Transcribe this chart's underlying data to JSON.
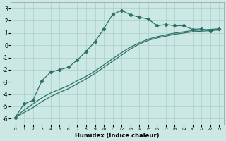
{
  "xlabel": "Humidex (Indice chaleur)",
  "bg_color": "#cce8e4",
  "grid_color": "#aacfca",
  "line_color": "#2d7068",
  "xlim": [
    -0.5,
    23.5
  ],
  "ylim": [
    -6.5,
    3.5
  ],
  "xticks": [
    0,
    1,
    2,
    3,
    4,
    5,
    6,
    7,
    8,
    9,
    10,
    11,
    12,
    13,
    14,
    15,
    16,
    17,
    18,
    19,
    20,
    21,
    22,
    23
  ],
  "yticks": [
    -6,
    -5,
    -4,
    -3,
    -2,
    -1,
    0,
    1,
    2,
    3
  ],
  "line1_x": [
    0,
    1,
    2,
    3,
    4,
    5,
    6,
    7,
    8,
    9,
    10,
    11,
    12,
    13,
    14,
    15,
    16,
    17,
    18,
    19,
    20,
    21,
    22,
    23
  ],
  "line1_y": [
    -5.9,
    -4.8,
    -4.5,
    -2.9,
    -2.2,
    -2.0,
    -1.8,
    -1.2,
    -0.5,
    0.3,
    1.35,
    2.55,
    2.85,
    2.5,
    2.3,
    2.15,
    1.6,
    1.7,
    1.6,
    1.6,
    1.3,
    1.35,
    1.15,
    1.35
  ],
  "line2_x": [
    0,
    1,
    2,
    3,
    4,
    5,
    6,
    7,
    8,
    9,
    10,
    11,
    12,
    13,
    14,
    15,
    16,
    17,
    18,
    19,
    20,
    21,
    22,
    23
  ],
  "line2_y": [
    -5.9,
    -5.3,
    -4.8,
    -4.3,
    -3.9,
    -3.6,
    -3.3,
    -2.9,
    -2.55,
    -2.1,
    -1.6,
    -1.1,
    -0.6,
    -0.15,
    0.2,
    0.5,
    0.7,
    0.85,
    1.0,
    1.1,
    1.2,
    1.25,
    1.3,
    1.35
  ],
  "line3_x": [
    0,
    1,
    2,
    3,
    4,
    5,
    6,
    7,
    8,
    9,
    10,
    11,
    12,
    13,
    14,
    15,
    16,
    17,
    18,
    19,
    20,
    21,
    22,
    23
  ],
  "line3_y": [
    -5.9,
    -5.5,
    -5.1,
    -4.6,
    -4.2,
    -3.85,
    -3.55,
    -3.15,
    -2.75,
    -2.3,
    -1.8,
    -1.3,
    -0.8,
    -0.3,
    0.1,
    0.4,
    0.6,
    0.75,
    0.9,
    1.0,
    1.1,
    1.15,
    1.2,
    1.25
  ]
}
